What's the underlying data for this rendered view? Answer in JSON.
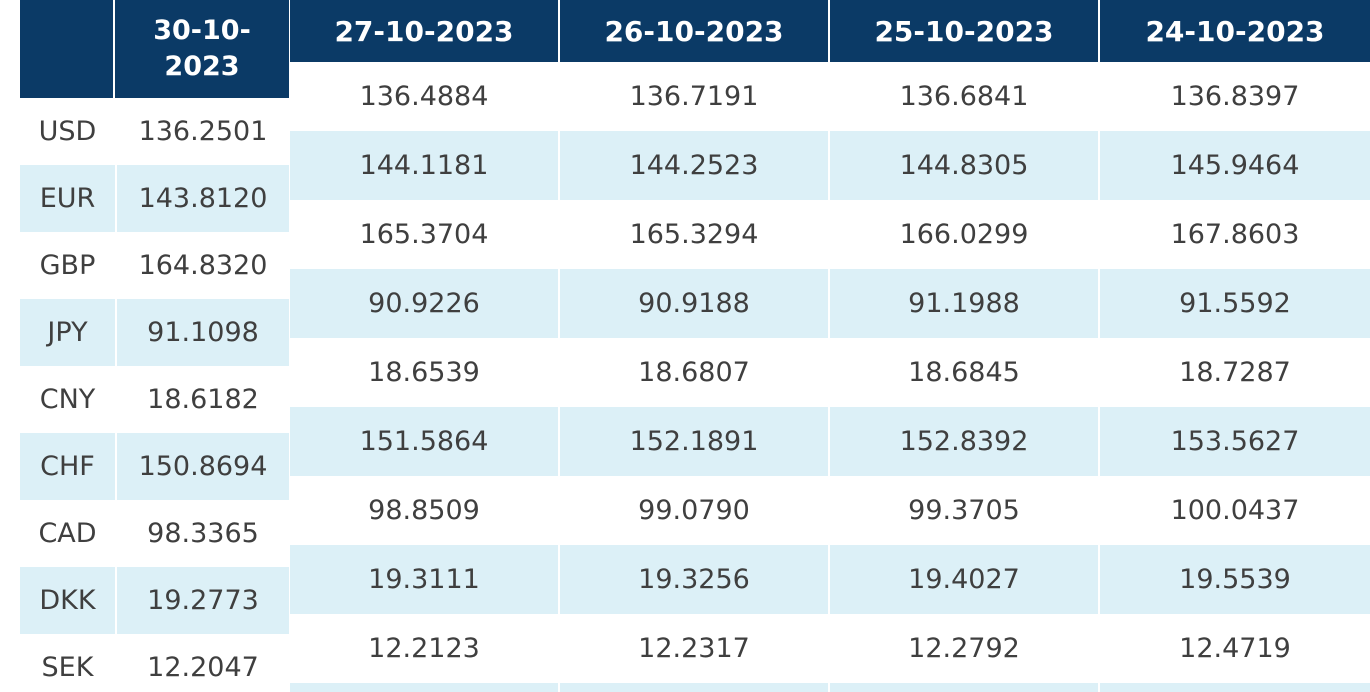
{
  "left_table": {
    "date_line1": "30-10-",
    "date_line2": "2023",
    "rows": [
      {
        "currency": "USD",
        "value": "136.2501"
      },
      {
        "currency": "EUR",
        "value": "143.8120"
      },
      {
        "currency": "GBP",
        "value": "164.8320"
      },
      {
        "currency": "JPY",
        "value": "91.1098"
      },
      {
        "currency": "CNY",
        "value": "18.6182"
      },
      {
        "currency": "CHF",
        "value": "150.8694"
      },
      {
        "currency": "CAD",
        "value": "98.3365"
      },
      {
        "currency": "DKK",
        "value": "19.2773"
      },
      {
        "currency": "SEK",
        "value": "12.2047"
      }
    ]
  },
  "right_table": {
    "headers": [
      "27-10-2023",
      "26-10-2023",
      "25-10-2023",
      "24-10-2023"
    ],
    "rows": [
      [
        "136.4884",
        "136.7191",
        "136.6841",
        "136.8397"
      ],
      [
        "144.1181",
        "144.2523",
        "144.8305",
        "145.9464"
      ],
      [
        "165.3704",
        "165.3294",
        "166.0299",
        "167.8603"
      ],
      [
        "90.9226",
        "90.9188",
        "91.1988",
        "91.5592"
      ],
      [
        "18.6539",
        "18.6807",
        "18.6845",
        "18.7287"
      ],
      [
        "151.5864",
        "152.1891",
        "152.8392",
        "153.5627"
      ],
      [
        "98.8509",
        "99.0790",
        "99.3705",
        "100.0437"
      ],
      [
        "19.3111",
        "19.3256",
        "19.4027",
        "19.5539"
      ],
      [
        "12.2123",
        "12.2317",
        "12.2792",
        "12.4719"
      ]
    ]
  },
  "colors": {
    "header_bg": "#0b3a66",
    "header_text": "#ffffff",
    "row_shade": "#dcf0f7",
    "cell_text": "#3f3f3f"
  }
}
